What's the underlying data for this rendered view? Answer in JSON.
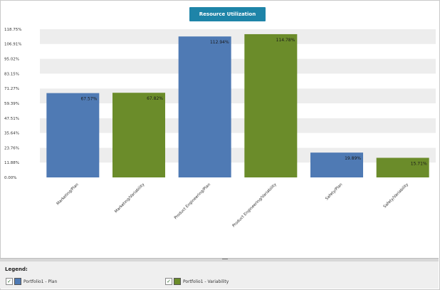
{
  "chart_data": {
    "type": "bar",
    "title": "Resource Utilization",
    "categories": [
      "Marketing/Plan",
      "Marketing/Variability",
      "Product Engineering/Plan",
      "Product Engineering/Variability",
      "Safety/Plan",
      "Safety/Variability"
    ],
    "values": [
      67.57,
      67.82,
      112.94,
      114.78,
      19.89,
      15.71
    ],
    "value_labels": [
      "67.57%",
      "67.82%",
      "112.94%",
      "114.78%",
      "19.89%",
      "15.71%"
    ],
    "bar_colors": [
      "#4f7ab4",
      "#6b8c2a",
      "#4f7ab4",
      "#6b8c2a",
      "#4f7ab4",
      "#6b8c2a"
    ],
    "ylim": [
      0,
      118.75
    ],
    "y_ticks": [
      {
        "value": 0,
        "label": "0.00%"
      },
      {
        "value": 11.88,
        "label": "11.88%"
      },
      {
        "value": 23.76,
        "label": "23.76%"
      },
      {
        "value": 35.64,
        "label": "35.64%"
      },
      {
        "value": 47.51,
        "label": "47.51%"
      },
      {
        "value": 59.39,
        "label": "59.39%"
      },
      {
        "value": 71.27,
        "label": "71.27%"
      },
      {
        "value": 83.15,
        "label": "83.15%"
      },
      {
        "value": 95.02,
        "label": "95.02%"
      },
      {
        "value": 106.91,
        "label": "106.91%"
      },
      {
        "value": 118.75,
        "label": "118.75%"
      }
    ],
    "xlabel": "",
    "ylabel": "",
    "grid": "alternating horizontal bands",
    "legend_position": "bottom"
  },
  "legend": {
    "title": "Legend:",
    "items": [
      {
        "label": "Portfolio1 - Plan",
        "color": "#4f7ab4",
        "checked": "✓"
      },
      {
        "label": "Portfolio1 - Variability",
        "color": "#6b8c2a",
        "checked": "✓"
      }
    ]
  }
}
